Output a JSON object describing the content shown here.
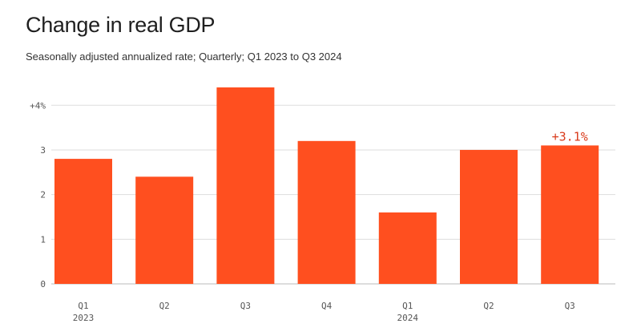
{
  "header": {
    "title": "Change in real GDP",
    "subtitle": "Seasonally adjusted annualized rate; Quarterly; Q1 2023 to Q3 2024"
  },
  "colors": {
    "bar": "#ff4f1f",
    "grid": "#dddddd",
    "axis": "#bbbbbb",
    "label_accent": "#d93b1c"
  },
  "chart_data": {
    "type": "bar",
    "title": "Change in real GDP",
    "subtitle": "Seasonally adjusted annualized rate; Quarterly; Q1 2023 to Q3 2024",
    "categories": [
      "Q1",
      "Q2",
      "Q3",
      "Q4",
      "Q1",
      "Q2",
      "Q3"
    ],
    "years": [
      {
        "label": "2023",
        "category_index": 0
      },
      {
        "label": "2024",
        "category_index": 4
      }
    ],
    "values": [
      2.8,
      2.4,
      4.4,
      3.2,
      1.6,
      3.0,
      3.1
    ],
    "y_ticks": [
      {
        "value": 0,
        "label": "0"
      },
      {
        "value": 1,
        "label": "1"
      },
      {
        "value": 2,
        "label": "2"
      },
      {
        "value": 3,
        "label": "3"
      },
      {
        "value": 4,
        "label": "+4%"
      }
    ],
    "ylim": [
      0,
      4.4
    ],
    "annotations": [
      {
        "category_index": 6,
        "text": "+3.1%"
      }
    ],
    "grid": true,
    "legend": "none"
  }
}
